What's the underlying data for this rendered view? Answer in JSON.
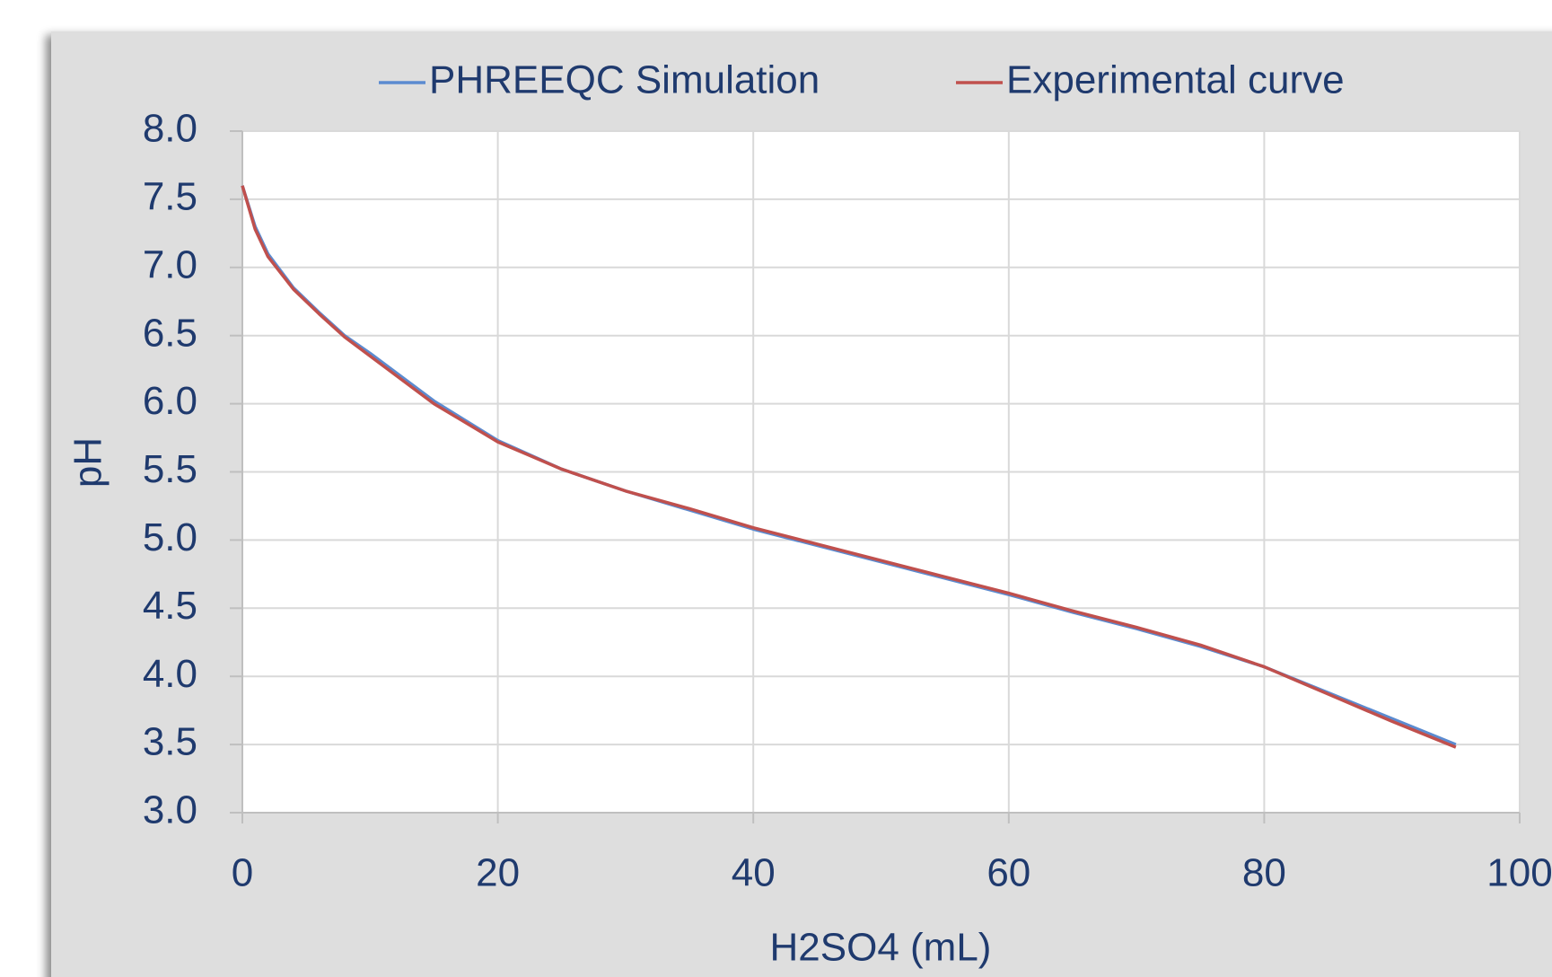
{
  "chart_data": {
    "type": "line",
    "x_label": "H2SO4 (mL)",
    "y_label": "pH",
    "x": [
      0,
      1,
      2,
      4,
      6,
      8,
      10,
      15,
      20,
      25,
      30,
      35,
      40,
      45,
      50,
      55,
      60,
      65,
      70,
      75,
      80,
      85,
      90,
      95
    ],
    "series": [
      {
        "name": "PHREEQC Simulation",
        "color": "#5b8bd0",
        "values": [
          7.6,
          7.3,
          7.1,
          6.85,
          6.67,
          6.5,
          6.37,
          6.02,
          5.73,
          5.52,
          5.36,
          5.22,
          5.08,
          4.96,
          4.84,
          4.72,
          4.6,
          4.47,
          4.35,
          4.22,
          4.07,
          3.88,
          3.69,
          3.5
        ]
      },
      {
        "name": "Experimental curve",
        "color": "#c0504d",
        "values": [
          7.6,
          7.28,
          7.08,
          6.84,
          6.66,
          6.49,
          6.35,
          6.0,
          5.72,
          5.52,
          5.36,
          5.23,
          5.09,
          4.97,
          4.85,
          4.73,
          4.61,
          4.48,
          4.36,
          4.23,
          4.07,
          3.87,
          3.67,
          3.48
        ]
      }
    ],
    "xlim": [
      0,
      100
    ],
    "xticks": [
      0,
      20,
      40,
      60,
      80,
      100
    ],
    "ylim": [
      3.0,
      8.0
    ],
    "yticks": [
      {
        "value": 3.0,
        "label": "3.0"
      },
      {
        "value": 3.5,
        "label": "3.5"
      },
      {
        "value": 4.0,
        "label": "4.0"
      },
      {
        "value": 4.5,
        "label": "4.5"
      },
      {
        "value": 5.0,
        "label": "5.0"
      },
      {
        "value": 5.5,
        "label": "5.5"
      },
      {
        "value": 6.0,
        "label": "6.0"
      },
      {
        "value": 6.5,
        "label": "6.5"
      },
      {
        "value": 7.0,
        "label": "7.0"
      },
      {
        "value": 7.5,
        "label": "7.5"
      },
      {
        "value": 8.0,
        "label": "8.0"
      }
    ],
    "grid": true,
    "legend": "top"
  }
}
